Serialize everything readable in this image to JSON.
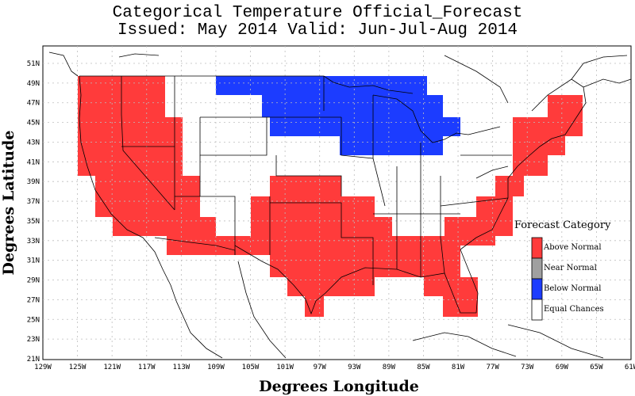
{
  "title": {
    "line1": "Categorical Temperature Official_Forecast",
    "line2": "Issued: May 2014 Valid: Jun-Jul-Aug 2014"
  },
  "axes": {
    "xlabel": "Degrees Longitude",
    "ylabel": "Degrees Latitude",
    "lat_ticks": [
      "21N",
      "23N",
      "25N",
      "27N",
      "29N",
      "31N",
      "33N",
      "35N",
      "37N",
      "39N",
      "41N",
      "43N",
      "45N",
      "47N",
      "49N",
      "51N"
    ],
    "lon_ticks": [
      "129W",
      "125W",
      "121W",
      "117W",
      "113W",
      "109W",
      "105W",
      "101W",
      "97W",
      "93W",
      "89W",
      "85W",
      "81W",
      "77W",
      "73W",
      "69W",
      "65W",
      "61W"
    ]
  },
  "legend": {
    "title": "Forecast Category",
    "items": [
      {
        "label": "Above Normal",
        "color": "#ff3b3b"
      },
      {
        "label": "Near Normal",
        "color": "#a0a0a0"
      },
      {
        "label": "Below Normal",
        "color": "#1c3cff"
      },
      {
        "label": "Equal Chances",
        "color": "#ffffff"
      }
    ]
  },
  "colors": {
    "above": "#ff3b3b",
    "below": "#1c3cff",
    "equal": "#ffffff",
    "grid": "#c0c0c0"
  }
}
